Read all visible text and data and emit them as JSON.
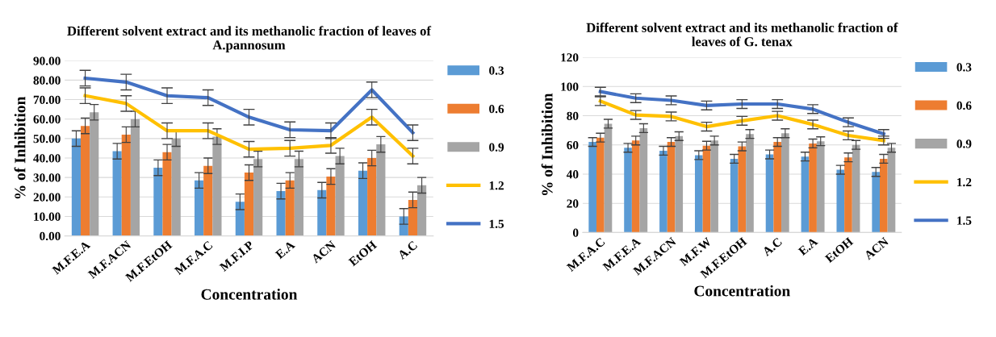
{
  "chart_data": [
    {
      "type": "bar",
      "title": "Different solvent extract and its methanolic fraction of leaves of A.pannosum",
      "xlabel": "Concentration",
      "ylabel": "% of Inhibition",
      "categories": [
        "M.F.E.A",
        "M.F.ACN",
        "M.F.EtOH",
        "M.F.A.C",
        "M.F.I.P",
        "E.A",
        "ACN",
        "EtOH",
        "A.C"
      ],
      "series": [
        {
          "name": "0.3",
          "color": "#5b9bd5",
          "values": [
            50,
            43.5,
            35,
            28.5,
            17.5,
            23,
            23.5,
            33.5,
            10
          ],
          "errors": [
            4,
            4,
            4,
            4,
            4,
            4,
            4,
            4,
            4
          ]
        },
        {
          "name": "0.6",
          "color": "#ed7d31",
          "values": [
            56.5,
            52,
            43,
            36,
            32.5,
            28.5,
            30.5,
            40,
            18.5
          ],
          "errors": [
            4,
            4,
            4,
            4,
            4,
            4,
            4,
            4,
            4
          ]
        },
        {
          "name": "0.9",
          "color": "#a5a5a5",
          "values": [
            63.5,
            60,
            50,
            51,
            39.5,
            39.5,
            41,
            47,
            26
          ],
          "errors": [
            4,
            4,
            4,
            4,
            4,
            4,
            4,
            4,
            4
          ]
        },
        {
          "name": "1.2",
          "color": "#ffc000",
          "type": "line",
          "values": [
            72,
            68,
            54,
            54,
            44.5,
            45,
            46.5,
            61,
            41
          ],
          "errors": [
            4,
            4,
            4,
            4,
            4,
            4,
            4,
            4,
            4
          ]
        },
        {
          "name": "1.5",
          "color": "#4472c4",
          "type": "line",
          "values": [
            81,
            79,
            72,
            71,
            61,
            54.5,
            54,
            75,
            53
          ],
          "errors": [
            4,
            4,
            4,
            4,
            4,
            4,
            4,
            4,
            4
          ]
        }
      ],
      "ylim": [
        0,
        90
      ],
      "yticks": [
        {
          "value": 0,
          "label": "0.00"
        },
        {
          "value": 10,
          "label": "10.00"
        },
        {
          "value": 20,
          "label": "20.00"
        },
        {
          "value": 30,
          "label": "30.00"
        },
        {
          "value": 40,
          "label": "40.00"
        },
        {
          "value": 50,
          "label": "50.00"
        },
        {
          "value": 60,
          "label": "60.00"
        },
        {
          "value": 70,
          "label": "70.00"
        },
        {
          "value": 80,
          "label": "80.00"
        },
        {
          "value": 90,
          "label": "90.00"
        }
      ],
      "grid": "y",
      "legend": "right",
      "marker": "none"
    },
    {
      "type": "bar",
      "title": "Different solvent extract and its methanolic fraction of leaves of G. tenax",
      "xlabel": "Concentration",
      "ylabel": "% of Inhibition",
      "categories": [
        "M.F.A.C",
        "M.F.E.A",
        "M.F.ACN",
        "M.F.W",
        "M.F.EtOH",
        "A.C",
        "E.A",
        "EtOH",
        "ACN"
      ],
      "series": [
        {
          "name": "0.3",
          "color": "#5b9bd5",
          "values": [
            62,
            58,
            56,
            53,
            50.5,
            53.5,
            52,
            43,
            41.5
          ],
          "errors": [
            3,
            3,
            3,
            3,
            3,
            3,
            3,
            3,
            3
          ]
        },
        {
          "name": "0.6",
          "color": "#ed7d31",
          "values": [
            65,
            63,
            62,
            59.5,
            59,
            62,
            61,
            51.5,
            50.5
          ],
          "errors": [
            3,
            3,
            3,
            3,
            3,
            3,
            3,
            3,
            3
          ]
        },
        {
          "name": "0.9",
          "color": "#a5a5a5",
          "values": [
            74.5,
            71.5,
            66,
            63,
            67.5,
            68,
            62.5,
            60,
            58
          ],
          "errors": [
            3,
            3,
            3,
            3,
            3,
            3,
            3,
            3,
            3
          ]
        },
        {
          "name": "1.2",
          "color": "#ffc000",
          "type": "line",
          "values": [
            90,
            80.5,
            79.5,
            72.5,
            76.5,
            80,
            74,
            66.5,
            63
          ],
          "errors": [
            3,
            3,
            3,
            3,
            3,
            3,
            3,
            3,
            3
          ]
        },
        {
          "name": "1.5",
          "color": "#4472c4",
          "type": "line",
          "values": [
            96.5,
            92,
            90.5,
            87,
            88,
            88,
            84.5,
            75.5,
            67.5
          ],
          "errors": [
            3,
            3,
            3,
            3,
            3,
            3,
            3,
            3,
            3
          ]
        }
      ],
      "ylim": [
        0,
        120
      ],
      "yticks": [
        0,
        20,
        40,
        60,
        80,
        100,
        120
      ],
      "grid": "y",
      "legend": "right",
      "marker": "none"
    }
  ]
}
